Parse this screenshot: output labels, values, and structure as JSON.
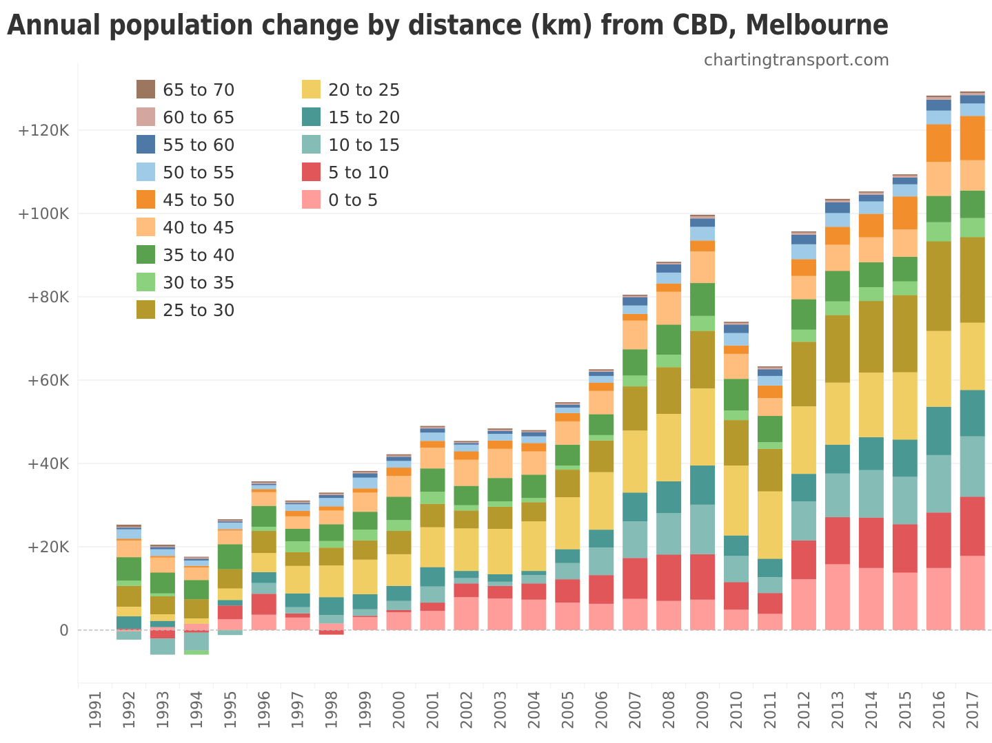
{
  "chart_data": {
    "type": "bar",
    "stacked": true,
    "title": "Annual population change by distance (km) from CBD, Melbourne",
    "subtitle": "chartingtransport.com",
    "xlabel": "",
    "ylabel": "",
    "ylim": [
      -13000,
      135000
    ],
    "yticks": [
      0,
      20000,
      40000,
      60000,
      80000,
      100000,
      120000
    ],
    "ytick_labels": [
      "0",
      "+20K",
      "+40K",
      "+60K",
      "+80K",
      "+100K",
      "+120K"
    ],
    "grid": true,
    "legend_position": "top-left",
    "categories": [
      "1991",
      "1992",
      "1993",
      "1994",
      "1995",
      "1996",
      "1997",
      "1998",
      "1999",
      "2000",
      "2001",
      "2002",
      "2003",
      "2004",
      "2005",
      "2006",
      "2007",
      "2008",
      "2009",
      "2010",
      "2011",
      "2012",
      "2013",
      "2014",
      "2015",
      "2016",
      "2017"
    ],
    "series": [
      {
        "name": "0 to 5",
        "color": "#FF9D9A",
        "values": [
          0,
          -0.3,
          0.7,
          1.5,
          2.6,
          3.7,
          3.0,
          1.6,
          3.1,
          4.3,
          4.6,
          7.9,
          7.6,
          7.3,
          6.6,
          6.3,
          7.5,
          7.0,
          7.3,
          4.9,
          3.9,
          12.2,
          15.8,
          14.9,
          13.8,
          14.9,
          17.8
        ]
      },
      {
        "name": "5 to 10",
        "color": "#E15759",
        "values": [
          0,
          0.3,
          -2.0,
          -0.6,
          3.3,
          5.0,
          1.0,
          -1.1,
          0.3,
          0.5,
          2.0,
          3.3,
          3.0,
          3.9,
          5.6,
          6.9,
          9.8,
          11.1,
          10.9,
          6.6,
          5.0,
          9.3,
          11.3,
          12.1,
          11.6,
          13.3,
          14.2
        ]
      },
      {
        "name": "10 to 15",
        "color": "#86BCB6",
        "values": [
          0,
          -2.0,
          -3.9,
          -4.3,
          -1.2,
          2.6,
          1.5,
          2.0,
          1.6,
          2.2,
          3.9,
          1.3,
          1.0,
          2.0,
          3.9,
          6.6,
          8.8,
          10.0,
          11.9,
          6.3,
          3.8,
          9.4,
          10.5,
          11.4,
          11.4,
          13.8,
          14.5
        ]
      },
      {
        "name": "15 to 20",
        "color": "#499894",
        "values": [
          0,
          3.0,
          1.5,
          0,
          1.3,
          2.6,
          3.3,
          4.3,
          3.6,
          3.6,
          4.6,
          1.7,
          1.8,
          1.0,
          3.3,
          4.3,
          6.9,
          7.6,
          9.4,
          4.9,
          4.4,
          6.6,
          6.9,
          7.9,
          8.9,
          11.6,
          11.1
        ]
      },
      {
        "name": "20 to 25",
        "color": "#F1CE63",
        "values": [
          0,
          2.3,
          1.6,
          1.3,
          2.8,
          4.6,
          6.6,
          7.6,
          8.3,
          7.6,
          9.6,
          10.2,
          10.9,
          11.9,
          12.5,
          13.8,
          14.9,
          16.2,
          18.5,
          16.8,
          16.2,
          16.2,
          14.9,
          15.5,
          16.2,
          18.2,
          16.2
        ]
      },
      {
        "name": "25 to 30",
        "color": "#B6992D",
        "values": [
          0,
          5.0,
          4.3,
          4.6,
          4.6,
          5.3,
          3.3,
          4.3,
          4.6,
          5.6,
          5.6,
          4.3,
          5.3,
          4.6,
          6.6,
          7.6,
          10.6,
          11.2,
          13.8,
          10.9,
          10.2,
          15.5,
          16.2,
          17.2,
          18.5,
          21.5,
          20.5
        ]
      },
      {
        "name": "30 to 35",
        "color": "#8CD17D",
        "values": [
          0,
          1.3,
          0.7,
          -1.0,
          0,
          1.0,
          2.6,
          1.6,
          2.6,
          2.6,
          2.9,
          1.3,
          1.3,
          1.0,
          1.0,
          1.3,
          2.6,
          3.0,
          3.6,
          2.3,
          1.6,
          2.9,
          3.3,
          3.3,
          3.3,
          4.6,
          4.6
        ]
      },
      {
        "name": "35 to 40",
        "color": "#59A14F",
        "values": [
          0,
          5.6,
          5.0,
          4.6,
          6.0,
          5.0,
          3.0,
          4.0,
          4.3,
          5.6,
          5.6,
          4.6,
          5.6,
          5.6,
          5.0,
          5.0,
          6.3,
          7.2,
          7.9,
          7.6,
          6.3,
          7.3,
          7.3,
          6.0,
          5.9,
          6.3,
          6.6
        ]
      },
      {
        "name": "40 to 45",
        "color": "#FFBE7D",
        "values": [
          0,
          4.0,
          3.6,
          3.0,
          3.3,
          3.3,
          3.0,
          3.3,
          4.6,
          5.0,
          5.0,
          6.3,
          7.0,
          5.6,
          5.6,
          5.6,
          6.9,
          7.9,
          7.6,
          6.0,
          4.3,
          5.6,
          6.3,
          6.0,
          6.6,
          8.2,
          7.3
        ]
      },
      {
        "name": "45 to 50",
        "color": "#F28E2B",
        "values": [
          0,
          0.4,
          0.4,
          0.4,
          0.3,
          0.7,
          1.3,
          1.0,
          1.0,
          2.0,
          1.6,
          2.0,
          2.0,
          2.0,
          2.0,
          2.0,
          1.6,
          2.0,
          2.6,
          2.0,
          3.0,
          4.0,
          4.3,
          5.6,
          7.9,
          9.0,
          10.6
        ]
      },
      {
        "name": "50 to 55",
        "color": "#A0CBE8",
        "values": [
          0,
          2.3,
          1.6,
          1.3,
          1.6,
          1.0,
          1.6,
          2.0,
          2.6,
          1.6,
          2.0,
          1.6,
          1.6,
          1.6,
          1.3,
          1.6,
          2.0,
          2.6,
          3.3,
          3.0,
          2.3,
          3.6,
          3.3,
          3.0,
          2.9,
          3.3,
          3.0
        ]
      },
      {
        "name": "55 to 60",
        "color": "#4E79A7",
        "values": [
          0,
          0.4,
          0.5,
          0.4,
          0.3,
          0.3,
          0.3,
          0.7,
          1.0,
          1.0,
          1.0,
          0.4,
          0.7,
          1.0,
          0.7,
          1.0,
          2.0,
          2.0,
          2.0,
          2.0,
          1.6,
          2.3,
          2.6,
          1.6,
          1.6,
          2.6,
          2.0
        ]
      },
      {
        "name": "60 to 65",
        "color": "#D4A6A0",
        "values": [
          0,
          0.2,
          0.2,
          0.3,
          0.2,
          0.3,
          0.3,
          0.3,
          0.3,
          0.3,
          0.3,
          0.2,
          0.3,
          0.2,
          0.3,
          0.3,
          0.3,
          0.3,
          0.5,
          0.4,
          0.4,
          0.5,
          0.4,
          0.5,
          0.5,
          0.6,
          0.5
        ]
      },
      {
        "name": "65 to 70",
        "color": "#9D7660",
        "values": [
          0,
          0.5,
          0.4,
          0.2,
          0.3,
          0.3,
          0.3,
          0.3,
          0.3,
          0.3,
          0.3,
          0.3,
          0.3,
          0.3,
          0.3,
          0.3,
          0.3,
          0.3,
          0.4,
          0.3,
          0.3,
          0.3,
          0.4,
          0.3,
          0.3,
          0.4,
          0.4
        ]
      }
    ],
    "units": "thousands of persons",
    "legend": {
      "columns": [
        [
          "65 to 70",
          "60 to 65",
          "55 to 60",
          "50 to 55",
          "45 to 50",
          "40 to 45",
          "35 to 40",
          "30 to 35",
          "25 to 30"
        ],
        [
          "20 to 25",
          "15 to 20",
          "10 to 15",
          "5 to 10",
          "0 to 5"
        ]
      ]
    }
  }
}
